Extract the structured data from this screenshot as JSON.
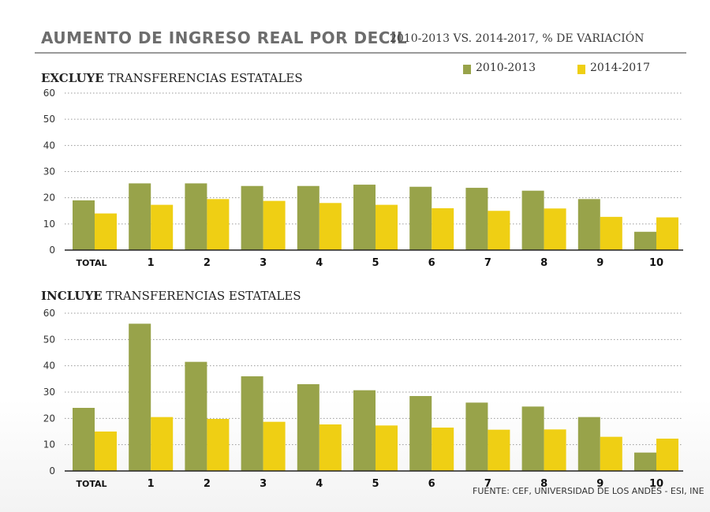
{
  "header": {
    "title": "AUMENTO DE INGRESO REAL POR DECIL",
    "subtitle": "2010-2013 VS. 2014-2017, % DE VARIACIÓN"
  },
  "legend": [
    {
      "label": "2010-2013",
      "color": "#98a34a"
    },
    {
      "label": "2014-2017",
      "color": "#efcf14"
    }
  ],
  "panels": [
    {
      "title_bold": "EXCLUYE",
      "title_rest": " TRANSFERENCIAS ESTATALES"
    },
    {
      "title_bold": "INCLUYE",
      "title_rest": " TRANSFERENCIAS ESTATALES"
    }
  ],
  "source": "FUENTE: CEF, UNIVERSIDAD DE LOS ANDES - ESI, INE",
  "chart_data": [
    {
      "type": "bar",
      "title": "EXCLUYE TRANSFERENCIAS ESTATALES",
      "categories": [
        "TOTAL",
        "1",
        "2",
        "3",
        "4",
        "5",
        "6",
        "7",
        "8",
        "9",
        "10"
      ],
      "series": [
        {
          "name": "2010-2013",
          "color": "#98a34a",
          "values": [
            19,
            25.5,
            25.5,
            24.5,
            24.5,
            25,
            24.2,
            23.8,
            22.7,
            19.5,
            7
          ]
        },
        {
          "name": "2014-2017",
          "color": "#efcf14",
          "values": [
            14,
            17.3,
            19.5,
            18.8,
            18,
            17.3,
            16,
            15,
            15.9,
            12.7,
            12.5
          ]
        }
      ],
      "yticks": [
        0,
        10,
        20,
        30,
        40,
        50,
        60
      ],
      "ylim": [
        0,
        60
      ],
      "grid": true,
      "legend": "top-right"
    },
    {
      "type": "bar",
      "title": "INCLUYE TRANSFERENCIAS ESTATALES",
      "categories": [
        "TOTAL",
        "1",
        "2",
        "3",
        "4",
        "5",
        "6",
        "7",
        "8",
        "9",
        "10"
      ],
      "series": [
        {
          "name": "2010-2013",
          "color": "#98a34a",
          "values": [
            24,
            56,
            41.5,
            36,
            33,
            30.7,
            28.5,
            26,
            24.5,
            20.5,
            7
          ]
        },
        {
          "name": "2014-2017",
          "color": "#efcf14",
          "values": [
            15,
            20.5,
            19.8,
            18.7,
            17.7,
            17.3,
            16.5,
            15.7,
            15.8,
            13,
            12.3
          ]
        }
      ],
      "yticks": [
        0,
        10,
        20,
        30,
        40,
        50,
        60
      ],
      "ylim": [
        0,
        60
      ],
      "grid": true,
      "legend": "top-right"
    }
  ]
}
